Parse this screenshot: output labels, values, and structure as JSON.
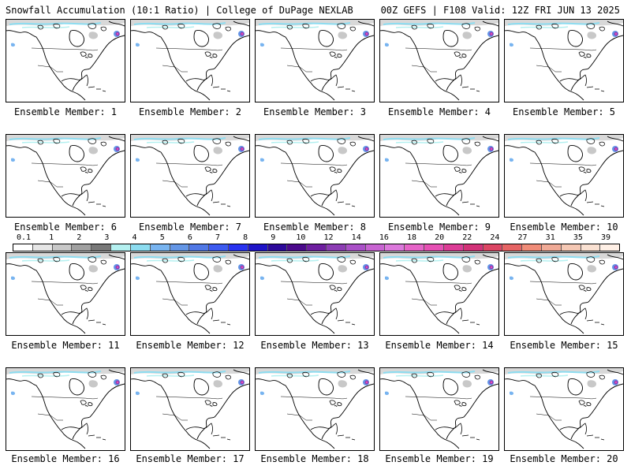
{
  "header": {
    "left": "Snowfall Accumulation (10:1 Ratio) | College of DuPage NEXLAB",
    "right": "00Z GEFS | F108 Valid: 12Z FRI JUN 13 2025"
  },
  "members": [
    "Ensemble Member: 1",
    "Ensemble Member: 2",
    "Ensemble Member: 3",
    "Ensemble Member: 4",
    "Ensemble Member: 5",
    "Ensemble Member: 6",
    "Ensemble Member: 7",
    "Ensemble Member: 8",
    "Ensemble Member: 9",
    "Ensemble Member: 10",
    "Ensemble Member: 11",
    "Ensemble Member: 12",
    "Ensemble Member: 13",
    "Ensemble Member: 14",
    "Ensemble Member: 15",
    "Ensemble Member: 16",
    "Ensemble Member: 17",
    "Ensemble Member: 18",
    "Ensemble Member: 19",
    "Ensemble Member: 20"
  ],
  "colorbar": {
    "labels": [
      "0.1",
      "1",
      "2",
      "3",
      "4",
      "5",
      "6",
      "7",
      "8",
      "9",
      "10",
      "12",
      "14",
      "16",
      "18",
      "20",
      "22",
      "24",
      "27",
      "31",
      "35",
      "39"
    ],
    "colors": [
      "#ffffff",
      "#e6e6e6",
      "#c8c8c8",
      "#a0a0a0",
      "#787878",
      "#b4f0f0",
      "#8cdcf0",
      "#78b4f0",
      "#6496e6",
      "#5078e6",
      "#3c5af0",
      "#2832f0",
      "#1e14c8",
      "#2d0a9b",
      "#4b0a8c",
      "#6e1ea0",
      "#8c3cb4",
      "#aa50c8",
      "#c864d2",
      "#dc78dc",
      "#e664c8",
      "#e650b4",
      "#dc3c96",
      "#d23278",
      "#dc4664",
      "#e66464",
      "#f08c78",
      "#f0aa96",
      "#f5c8b4",
      "#fae1d2",
      "#fff0e6"
    ]
  }
}
